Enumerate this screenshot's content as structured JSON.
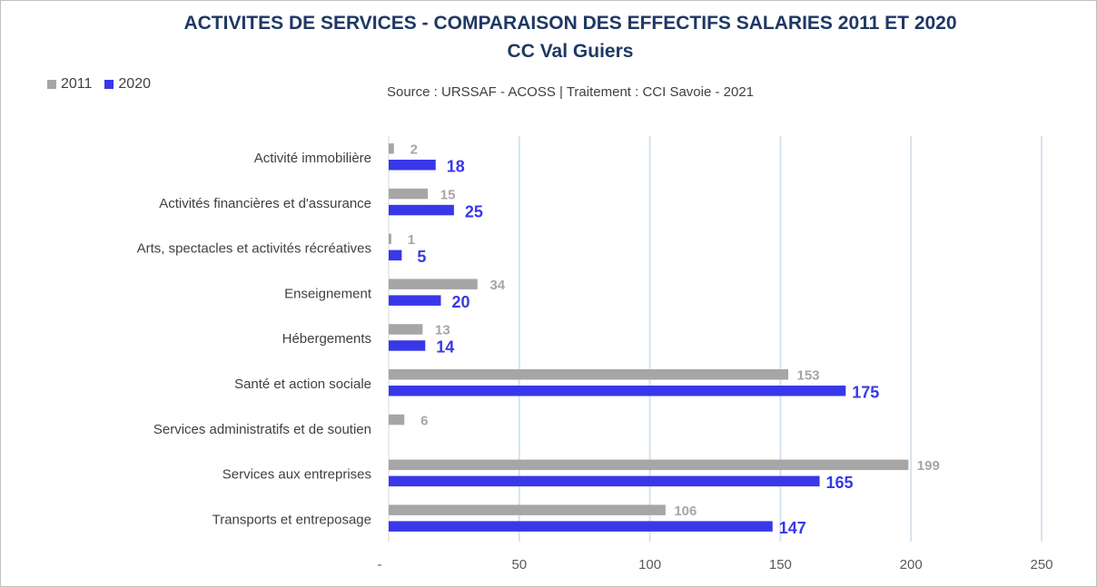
{
  "chart_data": {
    "type": "bar",
    "orientation": "horizontal",
    "title": "ACTIVITES DE SERVICES - COMPARAISON DES EFFECTIFS SALARIES 2011 ET 2020",
    "subtitle": "CC Val Guiers",
    "source_note": "Source  : URSSAF - ACOSS  |  Traitement : CCI Savoie - 2021",
    "categories": [
      "Activité immobilière",
      "Activités financières et d'assurance",
      "Arts, spectacles et activités récréatives",
      "Enseignement",
      "Hébergements",
      "Santé et action sociale",
      "Services administratifs et de soutien",
      "Services aux entreprises",
      "Transports et entreposage "
    ],
    "series": [
      {
        "name": "2011",
        "color": "#a6a6a6",
        "values": [
          2,
          15,
          1,
          34,
          13,
          153,
          6,
          199,
          106
        ]
      },
      {
        "name": "2020",
        "color": "#3838e8",
        "values": [
          18,
          25,
          5,
          20,
          14,
          175,
          null,
          165,
          147
        ]
      }
    ],
    "xlim": [
      0,
      250
    ],
    "xticks": [
      0,
      50,
      100,
      150,
      200,
      250
    ],
    "xtick_labels": [
      "-",
      "50",
      "100",
      "150",
      "200",
      "250"
    ],
    "gridlines": true,
    "legend_position": "top-left"
  }
}
